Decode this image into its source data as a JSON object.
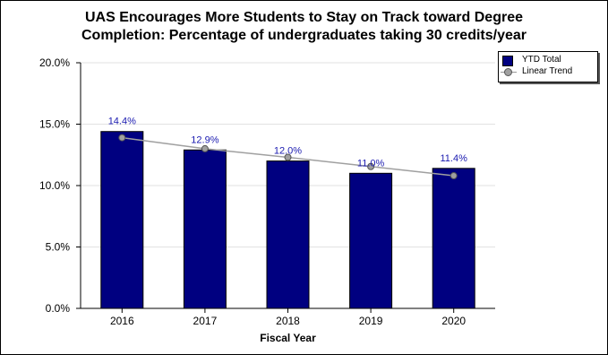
{
  "chart_data": {
    "type": "bar",
    "title": "UAS Encourages More Students to Stay on Track toward Degree\nCompletion: Percentage of undergraduates taking 30 credits/year",
    "xlabel": "Fiscal Year",
    "ylabel": "",
    "categories": [
      "2016",
      "2017",
      "2018",
      "2019",
      "2020"
    ],
    "series": [
      {
        "name": "YTD Total",
        "type": "bar",
        "values": [
          14.4,
          12.9,
          12.0,
          11.0,
          11.4
        ],
        "labels": [
          "14.4%",
          "12.9%",
          "12.0%",
          "11.0%",
          "11.4%"
        ],
        "color": "#000080"
      },
      {
        "name": "Linear Trend",
        "type": "line",
        "values": [
          13.9,
          13.0,
          12.3,
          11.55,
          10.8
        ],
        "color": "#a0a0a0"
      }
    ],
    "ylim": [
      0,
      20
    ],
    "yticks": [
      0,
      5,
      10,
      15,
      20
    ],
    "ytick_labels": [
      "0.0%",
      "5.0%",
      "10.0%",
      "15.0%",
      "20.0%"
    ],
    "grid": true,
    "legend_position": "top-right",
    "label_color": "#1a1ab0"
  }
}
